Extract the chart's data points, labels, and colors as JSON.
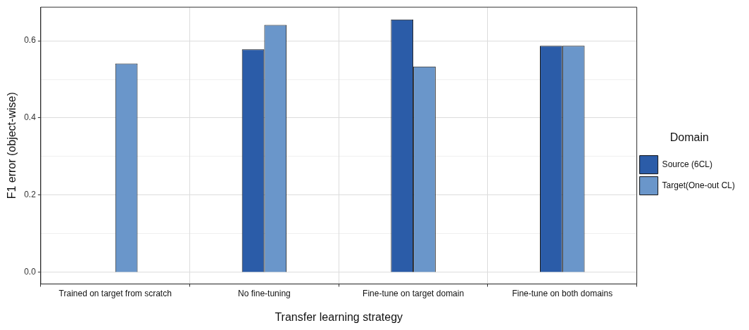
{
  "chart_data": {
    "type": "bar",
    "xlabel": "Transfer learning strategy",
    "ylabel": "F1 error (object-wise)",
    "legend_title": "Domain",
    "categories": [
      "Trained on target from scratch",
      "No fine-tuning",
      "Fine-tune on target domain",
      "Fine-tune on both domains"
    ],
    "series": [
      {
        "name": "Source (6CL)",
        "color": "#2b5ca8",
        "values": [
          null,
          0.578,
          0.655,
          0.587
        ]
      },
      {
        "name": "Target(One-out CL)",
        "color": "#6a96ca",
        "values": [
          0.541,
          0.641,
          0.533,
          0.587
        ]
      }
    ],
    "ylim": [
      -0.03,
      0.687
    ],
    "yticks": [
      {
        "value": 0,
        "label": "0.0"
      },
      {
        "value": 0.1,
        "label": null
      },
      {
        "value": 0.2,
        "label": "0.2"
      },
      {
        "value": 0.3,
        "label": null
      },
      {
        "value": 0.4,
        "label": "0.4"
      },
      {
        "value": 0.5,
        "label": null
      },
      {
        "value": 0.6,
        "label": "0.6"
      }
    ],
    "grid": true,
    "legend": "right"
  }
}
